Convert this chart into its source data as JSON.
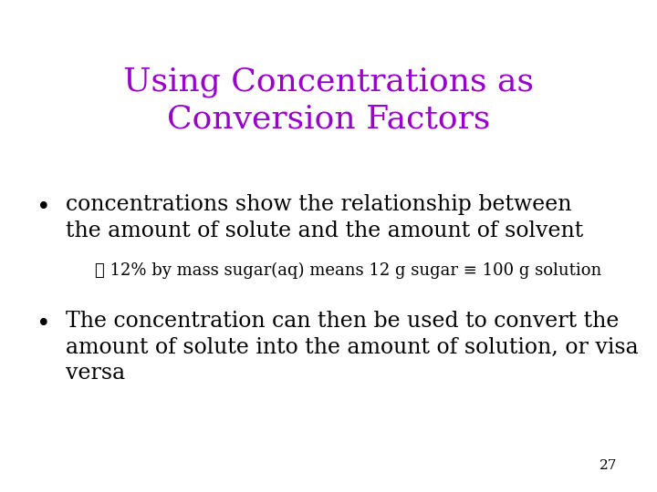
{
  "title_line1": "Using Concentrations as",
  "title_line2": "Conversion Factors",
  "title_color": "#9900CC",
  "title_fontsize": 26,
  "bg_color": "#FFFFFF",
  "bullet1_line1": "concentrations show the relationship between",
  "bullet1_line2": "the amount of solute and the amount of solvent",
  "sub_bullet": "✓ 12% by mass sugar(aq) means 12 g sugar ≡ 100 g solution",
  "bullet2_line1": "The concentration can then be used to convert the",
  "bullet2_line2": "amount of solute into the amount of solution, or visa",
  "bullet2_line3": "versa",
  "body_fontsize": 17,
  "sub_fontsize": 13,
  "body_color": "#000000",
  "page_number": "27",
  "page_num_fontsize": 11
}
